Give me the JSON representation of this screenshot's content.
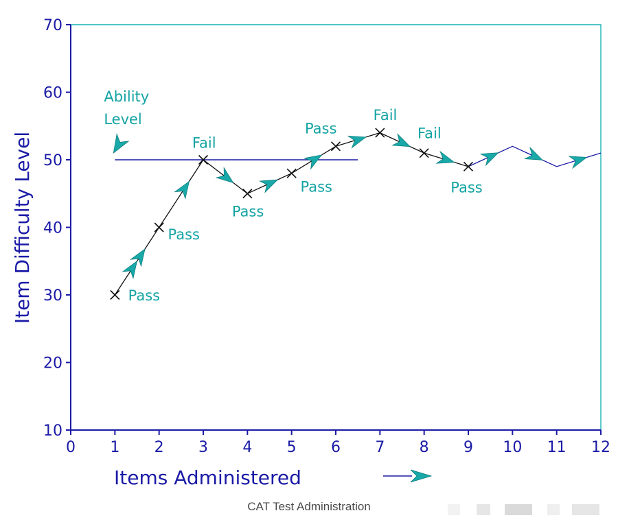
{
  "chart_data": {
    "type": "line",
    "xlabel": "Items Administered",
    "ylabel": "Item Difficulty Level",
    "xlim": [
      0,
      12
    ],
    "ylim": [
      10,
      70
    ],
    "x_ticks": [
      "0",
      "1",
      "2",
      "3",
      "4",
      "5",
      "6",
      "7",
      "8",
      "9",
      "10",
      "11",
      "12"
    ],
    "y_ticks": [
      "10",
      "20",
      "30",
      "40",
      "50",
      "60",
      "70"
    ],
    "grid": false,
    "ability_level": {
      "label_line1": "Ability",
      "label_line2": "Level",
      "value": 50,
      "x_range": [
        1,
        6.5
      ]
    },
    "series": [
      {
        "marker": "x",
        "x": [
          1,
          2,
          3,
          4,
          5,
          6,
          7,
          8,
          9
        ],
        "y": [
          30,
          40,
          50,
          45,
          48,
          52,
          54,
          51,
          49
        ]
      },
      {
        "x": [
          9,
          10,
          11,
          12
        ],
        "y": [
          49,
          52,
          49,
          51
        ]
      }
    ],
    "annotations": [
      {
        "text": "Pass",
        "x": 1.3,
        "y": 29.2
      },
      {
        "text": "Pass",
        "x": 2.2,
        "y": 38.2
      },
      {
        "text": "Fail",
        "x": 2.75,
        "y": 51.8
      },
      {
        "text": "Pass",
        "x": 3.65,
        "y": 41.6
      },
      {
        "text": "Pass",
        "x": 5.2,
        "y": 45.3
      },
      {
        "text": "Pass",
        "x": 5.3,
        "y": 53.9
      },
      {
        "text": "Fail",
        "x": 6.85,
        "y": 55.9
      },
      {
        "text": "Fail",
        "x": 7.85,
        "y": 53.2
      },
      {
        "text": "Pass",
        "x": 8.6,
        "y": 45.2
      }
    ]
  },
  "caption": "CAT Test Administration",
  "colors": {
    "axis": "#1a1aa6",
    "border": "#17b3b3",
    "arrow": "#19a9a9",
    "annotation": "#14a3a3",
    "path": "#111111"
  }
}
